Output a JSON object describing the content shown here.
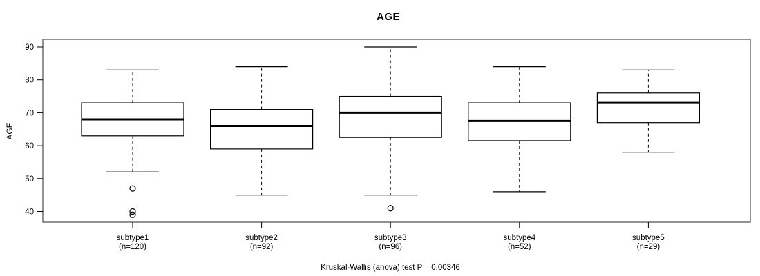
{
  "chart_data": {
    "type": "boxplot",
    "title": "AGE",
    "ylabel": "AGE",
    "xlabel": "",
    "ylim": [
      36.5,
      92.5
    ],
    "yticks": [
      "90",
      "80",
      "70",
      "60",
      "50",
      "40"
    ],
    "ytick_values": [
      90,
      80,
      70,
      60,
      50,
      40
    ],
    "grid": false,
    "legend": "none",
    "annotation": "Kruskal-Wallis (anova) test P = 0.00346",
    "series": [
      {
        "label": "subtype1",
        "count_label": "(n=120)",
        "n": 120,
        "whisker_low": 52,
        "q1": 63,
        "median": 68,
        "q3": 73,
        "whisker_high": 83,
        "outliers": [
          47,
          40,
          39
        ]
      },
      {
        "label": "subtype2",
        "count_label": "(n=92)",
        "n": 92,
        "whisker_low": 45,
        "q1": 59,
        "median": 66,
        "q3": 71,
        "whisker_high": 84,
        "outliers": []
      },
      {
        "label": "subtype3",
        "count_label": "(n=96)",
        "n": 96,
        "whisker_low": 45,
        "q1": 62.5,
        "median": 70,
        "q3": 75,
        "whisker_high": 90,
        "outliers": [
          41
        ]
      },
      {
        "label": "subtype4",
        "count_label": "(n=52)",
        "n": 52,
        "whisker_low": 46,
        "q1": 61.5,
        "median": 67.5,
        "q3": 73,
        "whisker_high": 84,
        "outliers": []
      },
      {
        "label": "subtype5",
        "count_label": "(n=29)",
        "n": 29,
        "whisker_low": 58,
        "q1": 67,
        "median": 73,
        "q3": 76,
        "whisker_high": 83,
        "outliers": []
      }
    ]
  },
  "colors": {
    "line": "#000000",
    "plot_border": "#4a4a4a",
    "box_fill": "#ffffff",
    "background": "#ffffff"
  }
}
